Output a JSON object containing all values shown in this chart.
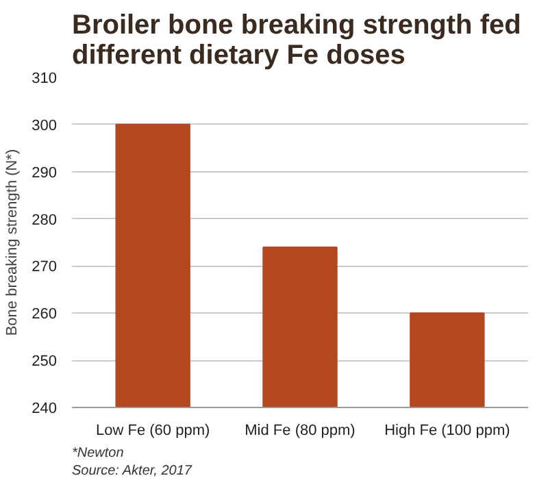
{
  "chart_data": {
    "type": "bar",
    "title": "Broiler bone breaking strength fed different dietary Fe doses",
    "ylabel": "Bone breaking strength (N*)",
    "categories": [
      "Low Fe (60 ppm)",
      "Mid Fe (80 ppm)",
      "High Fe (100 ppm)"
    ],
    "values": [
      300,
      274,
      260
    ],
    "color": "#b5471f",
    "ylim": [
      240,
      310
    ],
    "yticks": [
      240,
      250,
      260,
      270,
      280,
      290,
      300,
      310
    ],
    "grid": "y",
    "annotations": [
      "*Newton",
      "Source: Akter, 2017"
    ]
  }
}
